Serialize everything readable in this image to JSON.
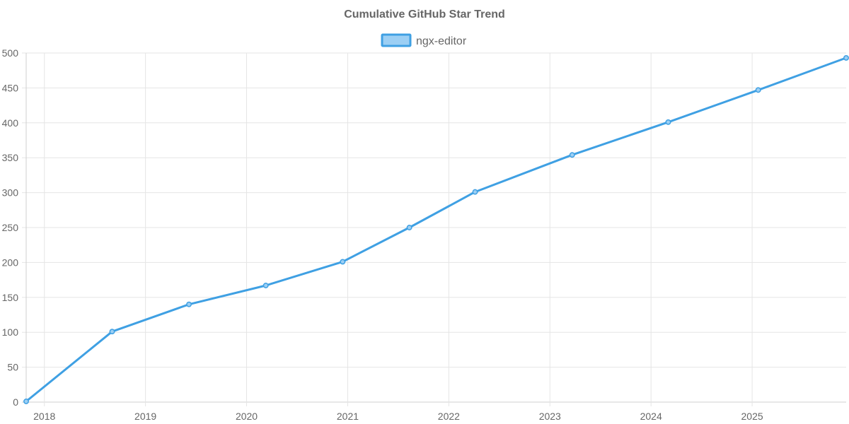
{
  "chart_data": {
    "type": "line",
    "title": "Cumulative GitHub Star Trend",
    "xlabel": "",
    "ylabel": "",
    "x_axis_type": "time",
    "xlim": [
      2017.82,
      2025.93
    ],
    "ylim": [
      0,
      500
    ],
    "y_ticks": [
      0,
      50,
      100,
      150,
      200,
      250,
      300,
      350,
      400,
      450,
      500
    ],
    "x_ticks": [
      "2018",
      "2019",
      "2020",
      "2021",
      "2022",
      "2023",
      "2024",
      "2025"
    ],
    "grid": true,
    "legend": "top-center",
    "series": [
      {
        "name": "ngx-editor",
        "color": "#3fa0e3",
        "fill_color": "#9ccff4",
        "points": [
          {
            "x": 2017.82,
            "y": 1
          },
          {
            "x": 2018.67,
            "y": 101
          },
          {
            "x": 2019.43,
            "y": 140
          },
          {
            "x": 2020.19,
            "y": 167
          },
          {
            "x": 2020.95,
            "y": 201
          },
          {
            "x": 2021.61,
            "y": 250
          },
          {
            "x": 2022.26,
            "y": 301
          },
          {
            "x": 2023.22,
            "y": 354
          },
          {
            "x": 2024.17,
            "y": 401
          },
          {
            "x": 2025.06,
            "y": 447
          },
          {
            "x": 2025.93,
            "y": 493
          }
        ]
      }
    ]
  }
}
